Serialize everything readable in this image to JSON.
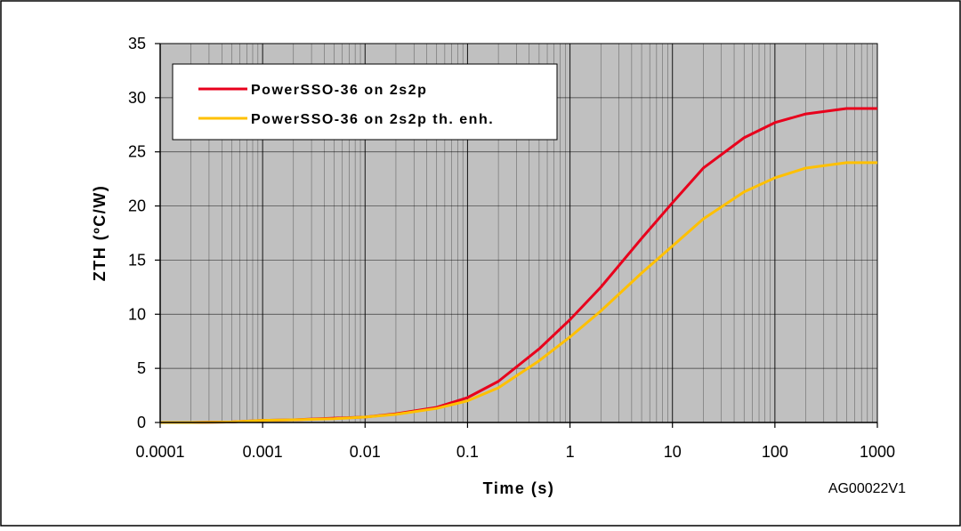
{
  "chart_data": {
    "type": "line",
    "xlabel": "Time (s)",
    "ylabel": "ZTH (ºC/W)",
    "xscale": "log",
    "xlim": [
      0.0001,
      1000
    ],
    "ylim": [
      0,
      35
    ],
    "x_ticks": [
      0.0001,
      0.001,
      0.01,
      0.1,
      1,
      10,
      100,
      1000
    ],
    "x_tick_labels": [
      "0.0001",
      "0.001",
      "0.01",
      "0.1",
      "1",
      "10",
      "100",
      "1000"
    ],
    "y_ticks": [
      0,
      5,
      10,
      15,
      20,
      25,
      30,
      35
    ],
    "y_tick_labels": [
      "0",
      "5",
      "10",
      "15",
      "20",
      "25",
      "30",
      "35"
    ],
    "grid": true,
    "minor_grid": true,
    "plot_background": "#c0c0c0",
    "legend_position": "top-left",
    "series": [
      {
        "name": "PowerSSO-36 on 2s2p",
        "color": "#e8001c",
        "points": [
          [
            0.0001,
            0.0
          ],
          [
            0.0002,
            0.0
          ],
          [
            0.0005,
            0.05
          ],
          [
            0.001,
            0.2
          ],
          [
            0.002,
            0.25
          ],
          [
            0.005,
            0.4
          ],
          [
            0.01,
            0.5
          ],
          [
            0.02,
            0.8
          ],
          [
            0.05,
            1.4
          ],
          [
            0.1,
            2.3
          ],
          [
            0.2,
            3.8
          ],
          [
            0.5,
            6.8
          ],
          [
            1,
            9.5
          ],
          [
            2,
            12.5
          ],
          [
            5,
            17.0
          ],
          [
            10,
            20.3
          ],
          [
            20,
            23.5
          ],
          [
            50,
            26.3
          ],
          [
            100,
            27.7
          ],
          [
            200,
            28.5
          ],
          [
            500,
            29.0
          ],
          [
            1000,
            29.0
          ]
        ]
      },
      {
        "name": "PowerSSO-36 on 2s2p th. enh.",
        "color": "#ffc000",
        "points": [
          [
            0.0001,
            0.0
          ],
          [
            0.0002,
            0.0
          ],
          [
            0.0005,
            0.05
          ],
          [
            0.001,
            0.2
          ],
          [
            0.002,
            0.25
          ],
          [
            0.005,
            0.35
          ],
          [
            0.01,
            0.5
          ],
          [
            0.02,
            0.75
          ],
          [
            0.05,
            1.3
          ],
          [
            0.1,
            2.0
          ],
          [
            0.2,
            3.2
          ],
          [
            0.5,
            5.7
          ],
          [
            1,
            7.9
          ],
          [
            2,
            10.3
          ],
          [
            5,
            13.8
          ],
          [
            10,
            16.3
          ],
          [
            20,
            18.8
          ],
          [
            50,
            21.3
          ],
          [
            100,
            22.6
          ],
          [
            200,
            23.5
          ],
          [
            500,
            24.0
          ],
          [
            1000,
            24.0
          ]
        ]
      }
    ],
    "annotation": "AG00022V1"
  }
}
